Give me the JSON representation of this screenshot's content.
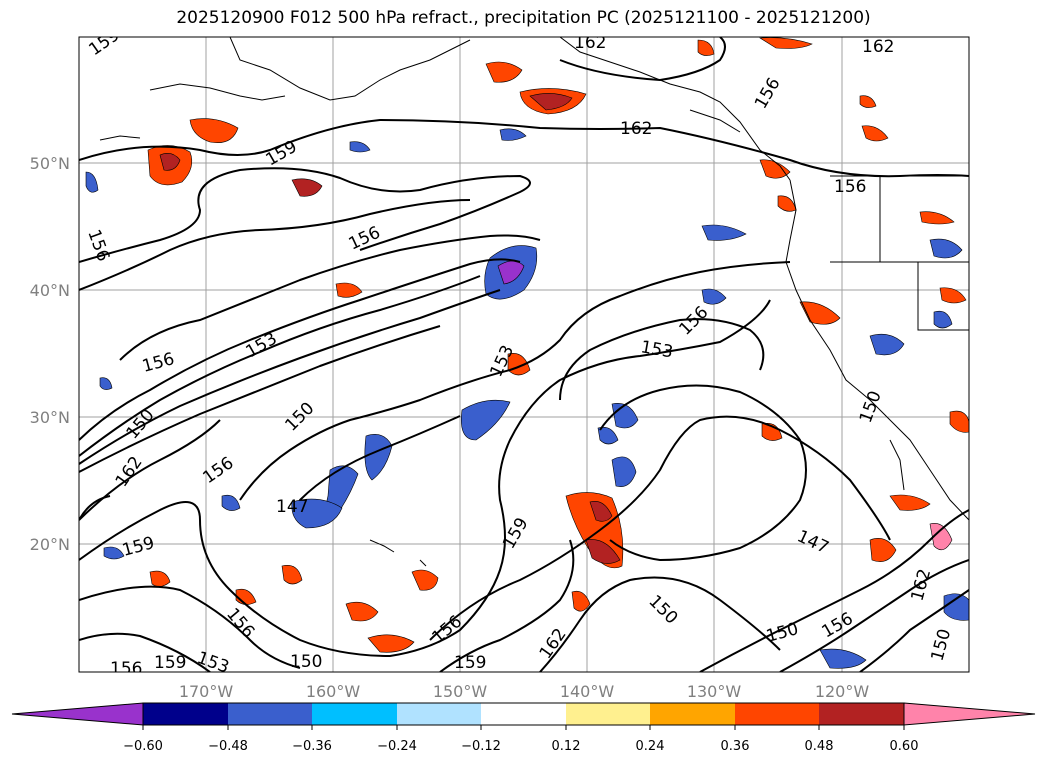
{
  "title": "2025120900 F012 500 hPa refract., precipitation PC (2025121100 - 2025121200)",
  "map": {
    "lon_labels": [
      "170°W",
      "160°W",
      "150°W",
      "140°W",
      "130°W",
      "120°W"
    ],
    "lat_labels": [
      "50°N",
      "40°N",
      "30°N",
      "20°N"
    ],
    "contour_labels": [
      "159",
      "162",
      "162",
      "162",
      "159",
      "156",
      "156",
      "156",
      "153",
      "156",
      "153",
      "150",
      "150",
      "162",
      "156",
      "147",
      "159",
      "159",
      "150",
      "153",
      "156",
      "150",
      "156",
      "159",
      "150",
      "147",
      "156",
      "159",
      "162",
      "153",
      "156",
      "150",
      "162",
      "156",
      "156",
      "150"
    ]
  },
  "colorbar": {
    "ticks": [
      "−0.60",
      "−0.48",
      "−0.36",
      "−0.24",
      "−0.12",
      "0.12",
      "0.24",
      "0.36",
      "0.48",
      "0.60"
    ],
    "colors": [
      "#9932cc",
      "#00008b",
      "#3a5fcd",
      "#00bfff",
      "#b0e2ff",
      "#ffffff",
      "#fff08f",
      "#ffa500",
      "#ff4500",
      "#b22222",
      "#ff83aa"
    ]
  }
}
